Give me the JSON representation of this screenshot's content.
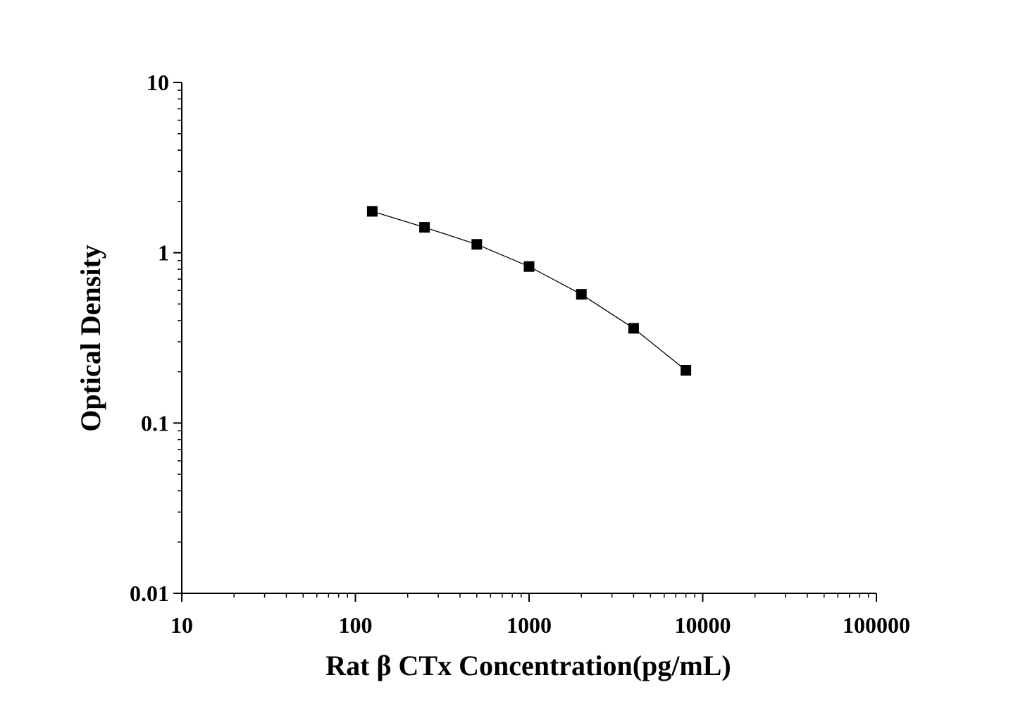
{
  "chart_data": {
    "type": "line",
    "xlabel": "Rat β CTx Concentration(pg/mL)",
    "ylabel": "Optical Density",
    "xscale": "log",
    "yscale": "log",
    "xlim": [
      10,
      100000
    ],
    "ylim": [
      0.01,
      10
    ],
    "xticks": [
      "10",
      "100",
      "1000",
      "10000",
      "100000"
    ],
    "yticks": [
      "0.01",
      "0.1",
      "1",
      "10"
    ],
    "grid": false,
    "marker": "square",
    "color": "#000000",
    "series": [
      {
        "x": [
          125,
          250,
          500,
          1000,
          2000,
          4000,
          8000
        ],
        "y": [
          1.75,
          1.41,
          1.12,
          0.83,
          0.57,
          0.36,
          0.204
        ]
      }
    ]
  }
}
